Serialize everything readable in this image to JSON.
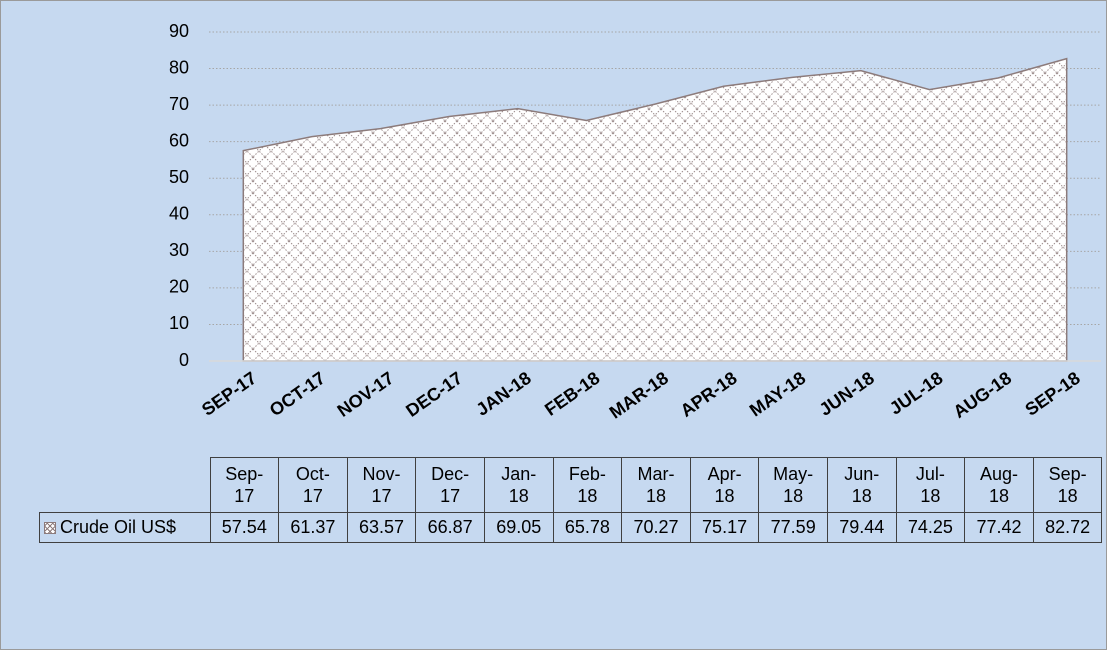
{
  "chart_data": {
    "type": "area",
    "categories": [
      "SEP-17",
      "OCT-17",
      "NOV-17",
      "DEC-17",
      "JAN-18",
      "FEB-18",
      "MAR-18",
      "APR-18",
      "MAY-18",
      "JUN-18",
      "JUL-18",
      "AUG-18",
      "SEP-18"
    ],
    "series": [
      {
        "name": "Crude Oil US$",
        "color": "#8c7b7b",
        "values": [
          57.54,
          61.37,
          63.57,
          66.87,
          69.05,
          65.78,
          70.27,
          75.17,
          77.59,
          79.44,
          74.25,
          77.42,
          82.72
        ]
      }
    ],
    "ylim": [
      0,
      90
    ],
    "yticks": [
      0,
      10,
      20,
      30,
      40,
      50,
      60,
      70,
      80,
      90
    ],
    "grid": true,
    "data_table": {
      "categories": [
        "Sep-17",
        "Oct-17",
        "Nov-17",
        "Dec-17",
        "Jan-18",
        "Feb-18",
        "Mar-18",
        "Apr-18",
        "May-18",
        "Jun-18",
        "Jul-18",
        "Aug-18",
        "Sep-18"
      ]
    }
  }
}
